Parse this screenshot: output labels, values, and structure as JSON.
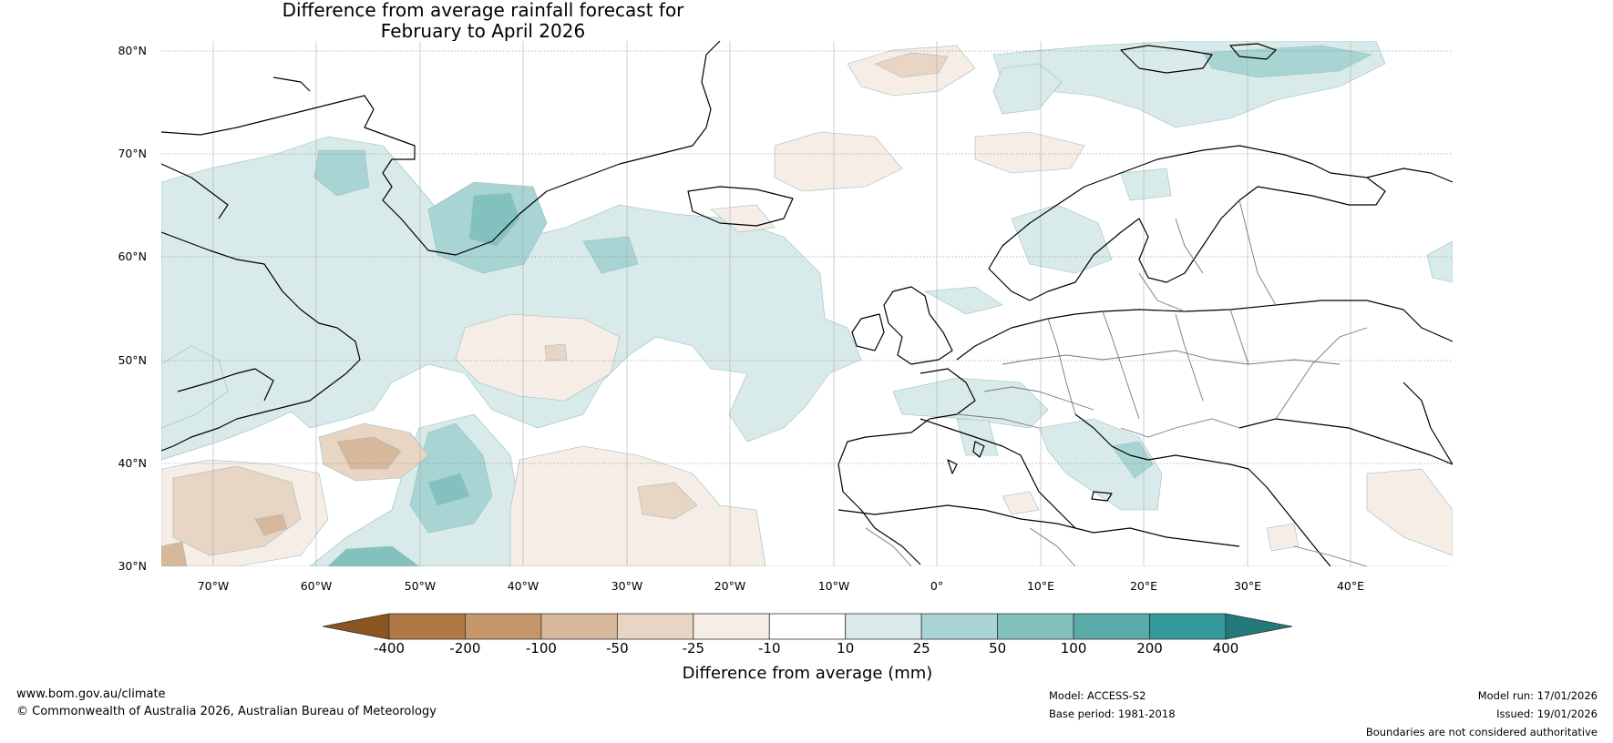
{
  "title_line1": "Difference from average rainfall forecast for",
  "title_line2": "February to April 2026",
  "lat_labels": [
    "80°N",
    "70°N",
    "60°N",
    "50°N",
    "40°N",
    "30°N"
  ],
  "lon_labels": [
    "70°W",
    "60°W",
    "50°W",
    "40°W",
    "30°W",
    "20°W",
    "10°W",
    "0°",
    "10°E",
    "20°E",
    "30°E",
    "40°E"
  ],
  "legend": {
    "title": "Difference from average (mm)",
    "bins": [
      "-400",
      "-200",
      "-100",
      "-50",
      "-25",
      "-10",
      "10",
      "25",
      "50",
      "100",
      "200",
      "400"
    ],
    "colors": [
      "#b07844",
      "#c4966a",
      "#d7b89a",
      "#e8d5c4",
      "#f5ede6",
      "#ffffff",
      "#d8ebea",
      "#a8d4d3",
      "#83c1bf",
      "#5aacaa",
      "#33999a"
    ],
    "end_low": "#8a5520",
    "end_high": "#247a7a"
  },
  "footer": {
    "website": "www.bom.gov.au/climate",
    "copyright": "© Commonwealth of Australia 2026, Australian Bureau of Meteorology",
    "model": "Model: ACCESS-S2",
    "base_period": "Base period: 1981-2018",
    "model_run": "Model run: 17/01/2026",
    "issued": "Issued: 19/01/2026",
    "disclaimer": "Boundaries are not considered authoritative"
  }
}
